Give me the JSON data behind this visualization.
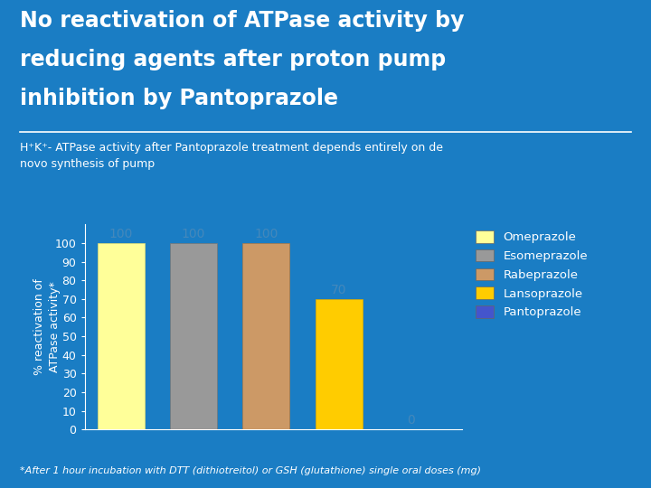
{
  "title_line1": "No reactivation of ATPase activity by",
  "title_line2": "reducing agents after proton pump",
  "title_line3": "inhibition by Pantoprazole",
  "subtitle": "H⁺K⁺- ATPase activity after Pantoprazole treatment depends entirely on de\nnovo synthesis of pump",
  "footnote": "*After 1 hour incubation with DTT (dithiotreitol) or GSH (glutathione) single oral doses (mg)",
  "ylabel": "% reactivation of\nATPase activity*",
  "bar_labels": [
    "Omeprazole",
    "Esomeprazole",
    "Rabeprazole",
    "Lansoprazole",
    "Pantoprazole"
  ],
  "bar_values": [
    100,
    100,
    100,
    70,
    0
  ],
  "bar_colors": [
    "#FFFF99",
    "#999999",
    "#CC9966",
    "#FFCC00",
    "#4455CC"
  ],
  "bar_edge_colors": [
    "#DDDD77",
    "#777777",
    "#AA7744",
    "#DDAA00",
    "#2233AA"
  ],
  "value_labels": [
    "100",
    "100",
    "100",
    "70",
    "0"
  ],
  "ylim": [
    0,
    110
  ],
  "yticks": [
    0,
    10,
    20,
    30,
    40,
    50,
    60,
    70,
    80,
    90,
    100
  ],
  "bg_color": "#1A7DC4",
  "title_color": "#FFFFFF",
  "subtitle_color": "#FFFFFF",
  "footnote_color": "#FFFFFF",
  "axis_color": "#FFFFFF",
  "tick_color": "#FFFFFF",
  "bar_label_color": "#4488BB",
  "legend_colors": [
    "#FFFF99",
    "#999999",
    "#CC9966",
    "#FFCC00",
    "#4455CC"
  ],
  "legend_labels": [
    "Omeprazole",
    "Esomeprazole",
    "Rabeprazole",
    "Lansoprazole",
    "Pantoprazole"
  ]
}
